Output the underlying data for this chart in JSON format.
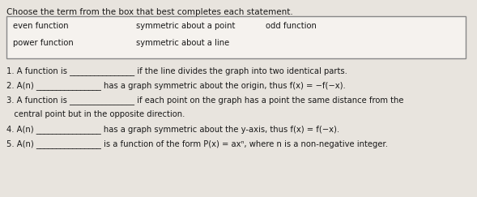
{
  "title": "Choose the term from the box that best completes each statement.",
  "box_row1_col1": "even function",
  "box_row1_col2": "symmetric about a point",
  "box_row1_col3": "odd function",
  "box_row2_col1": "power function",
  "box_row2_col2": "symmetric about a line",
  "s1": "1. A function is ________________ if the line divides the graph into two identical parts.",
  "s2": "2. A(n) ________________ has a graph symmetric about the origin, thus f(x) = −f(−x).",
  "s3a": "3. A function is ________________ if each point on the graph has a point the same distance from the",
  "s3b": "   central point but in the opposite direction.",
  "s4": "4. A(n) ________________ has a graph symmetric about the y-axis, thus f(x) = f(−x).",
  "s5": "5. A(n) ________________ is a function of the form P(x) = axⁿ, where n is a non-negative integer.",
  "bg_color": "#e8e4de",
  "paper_color": "#f5f2ee",
  "box_bg": "#f5f2ee",
  "box_border": "#888888",
  "text_color": "#1a1a1a",
  "font_size": 7.2,
  "title_font_size": 7.5
}
